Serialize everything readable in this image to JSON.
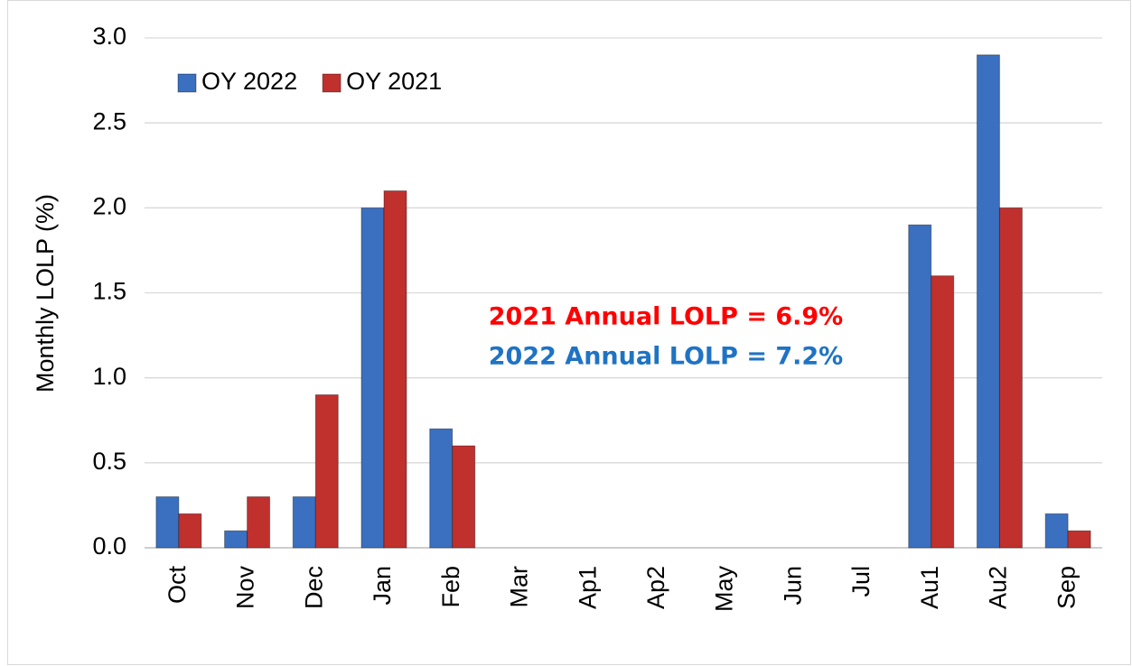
{
  "chart_data": {
    "type": "bar",
    "y_label": "Monthly LOLP (%)",
    "categories": [
      "Oct",
      "Nov",
      "Dec",
      "Jan",
      "Feb",
      "Mar",
      "Ap1",
      "Ap2",
      "May",
      "Jun",
      "Jul",
      "Au1",
      "Au2",
      "Sep"
    ],
    "series": [
      {
        "name": "OY 2022",
        "color": "#3b6fbf",
        "values": [
          0.3,
          0.1,
          0.3,
          2.0,
          0.7,
          0,
          0,
          0,
          0,
          0,
          0,
          1.9,
          2.9,
          0.2
        ]
      },
      {
        "name": "OY 2021",
        "color": "#c0302d",
        "values": [
          0.2,
          0.3,
          0.9,
          2.1,
          0.6,
          0,
          0,
          0,
          0,
          0,
          0,
          1.6,
          2.0,
          0.1
        ]
      }
    ],
    "ylim": [
      0,
      3
    ],
    "yticks": [
      {
        "value": 0,
        "label": "0.0"
      },
      0.5,
      {
        "value": 1,
        "label": "1.0"
      },
      1.5,
      {
        "value": 2,
        "label": "2.0"
      },
      2.5,
      {
        "value": 3,
        "label": "3.0"
      }
    ],
    "grid": true,
    "legend": "upper left",
    "annotations": [
      {
        "text": "2021 Annual LOLP = 6.9%",
        "color": "#ff0000"
      },
      {
        "text": "2022 Annual LOLP = 7.2%",
        "color": "#1f73c4"
      }
    ]
  }
}
